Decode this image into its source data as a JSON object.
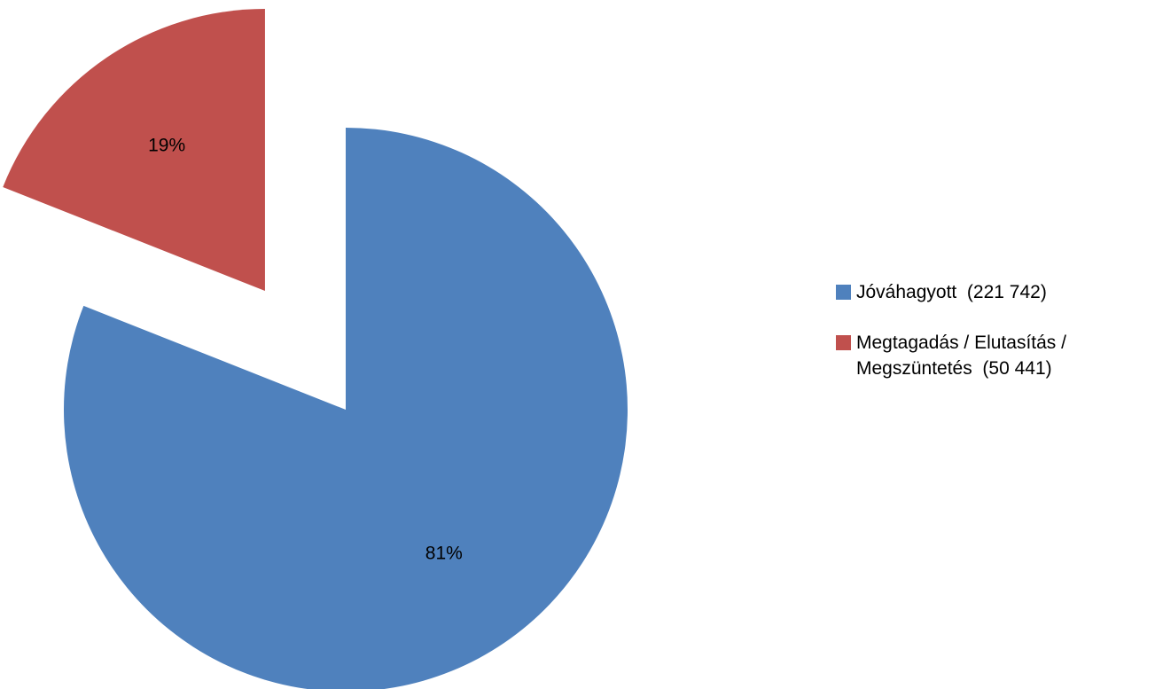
{
  "chart_data": {
    "type": "pie",
    "categories": [
      "Jóváhagyott  (221 742)",
      "Megtagadás / Elutasítás / Megszüntetés  (50 441)"
    ],
    "values": [
      81,
      19
    ],
    "value_labels": [
      "81%",
      "19%"
    ],
    "colors": [
      "#4f81bd",
      "#c0504d"
    ],
    "legend": "right"
  }
}
